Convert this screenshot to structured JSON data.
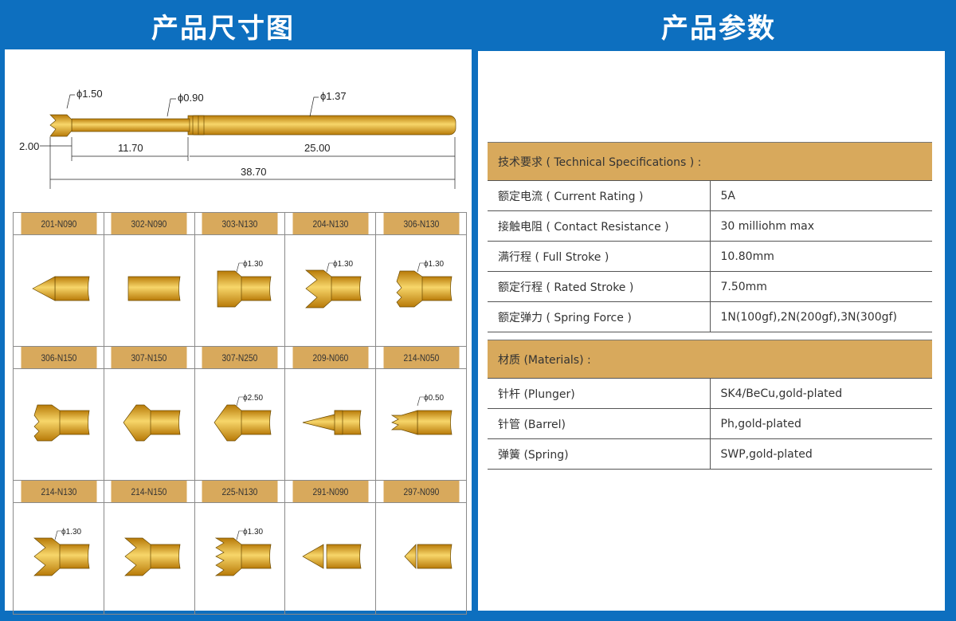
{
  "headers": {
    "left": "产品尺寸图",
    "right": "产品参数"
  },
  "dimensions": {
    "tip_diameter": "ϕ1.50",
    "plunger_diameter": "ϕ0.90",
    "barrel_diameter": "ϕ1.37",
    "tip_length": "2.00",
    "plunger_length": "11.70",
    "barrel_length": "25.00",
    "total_length": "38.70"
  },
  "colors": {
    "background": "#0d6fbf",
    "gold_header": "#d8a95c",
    "gold_dark": "#b87a08",
    "gold_light": "#f7d66a"
  },
  "tips": [
    {
      "code": "201-N090",
      "shape": "cone"
    },
    {
      "code": "302-N090",
      "shape": "flat"
    },
    {
      "code": "303-N130",
      "shape": "cup",
      "diameter": "ϕ1.30"
    },
    {
      "code": "204-N130",
      "shape": "crown",
      "diameter": "ϕ1.30"
    },
    {
      "code": "306-N130",
      "shape": "serrated",
      "diameter": "ϕ1.30"
    },
    {
      "code": "306-N150",
      "shape": "serrated"
    },
    {
      "code": "307-N150",
      "shape": "dome"
    },
    {
      "code": "307-N250",
      "shape": "dome",
      "diameter": "ϕ2.50"
    },
    {
      "code": "209-N060",
      "shape": "needle"
    },
    {
      "code": "214-N050",
      "shape": "smallcrown",
      "diameter": "ϕ0.50"
    },
    {
      "code": "214-N130",
      "shape": "crown",
      "diameter": "ϕ1.30"
    },
    {
      "code": "214-N150",
      "shape": "crown"
    },
    {
      "code": "225-N130",
      "shape": "multicrown",
      "diameter": "ϕ1.30"
    },
    {
      "code": "291-N090",
      "shape": "longcone"
    },
    {
      "code": "297-N090",
      "shape": "shortcone"
    }
  ],
  "technical": {
    "title": "技术要求 ( Technical Specifications ) :",
    "rows": [
      {
        "label": "额定电流 ( Current Rating )",
        "value": "5A"
      },
      {
        "label": "接触电阻 ( Contact Resistance )",
        "value": "30 milliohm max"
      },
      {
        "label": "满行程 ( Full Stroke )",
        "value": "10.80mm"
      },
      {
        "label": "额定行程 ( Rated Stroke )",
        "value": "7.50mm"
      },
      {
        "label": "额定弹力 ( Spring Force )",
        "value": "1N(100gf),2N(200gf),3N(300gf)"
      }
    ]
  },
  "materials": {
    "title": "材质 (Materials) :",
    "rows": [
      {
        "label": "针杆 (Plunger)",
        "value": "SK4/BeCu,gold-plated"
      },
      {
        "label": "针管 (Barrel)",
        "value": "Ph,gold-plated"
      },
      {
        "label": "弹簧 (Spring)",
        "value": "SWP,gold-plated"
      }
    ]
  }
}
